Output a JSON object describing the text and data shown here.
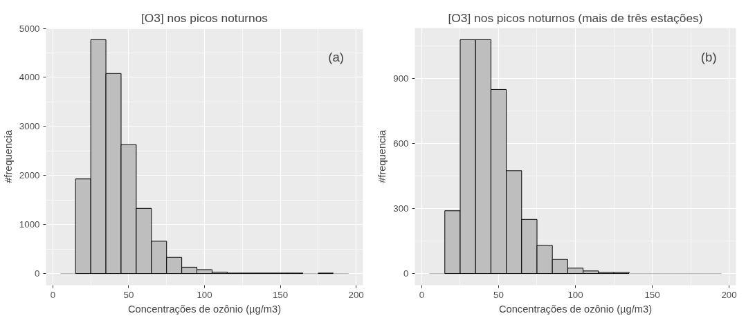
{
  "chart_data": [
    {
      "type": "histogram",
      "title": "[O3] nos picos noturnos",
      "xlabel": "Concentrações de ozônio (µg/m3)",
      "ylabel": "#frequencia",
      "annotations": [
        "(a)"
      ],
      "bins": [
        5,
        15,
        25,
        35,
        45,
        55,
        65,
        75,
        85,
        95,
        105,
        115,
        125,
        135,
        145,
        155,
        165,
        175,
        185,
        195
      ],
      "values": [
        0,
        1930,
        4770,
        4080,
        2630,
        1330,
        660,
        330,
        130,
        80,
        30,
        10,
        10,
        10,
        10,
        10,
        0,
        10,
        0
      ],
      "color": "#bebebe",
      "xlim": [
        -4.5,
        204.5
      ],
      "xticks": [
        0,
        50,
        100,
        150,
        200
      ],
      "ylim": [
        -238,
        5008
      ],
      "yticks": [
        0,
        1000,
        2000,
        3000,
        4000,
        5000
      ],
      "grid": true
    },
    {
      "type": "histogram",
      "title": "[O3] nos picos noturnos (mais de três estações)",
      "xlabel": "Concentrações de ozônio (µg/m3)",
      "ylabel": "#frequencia",
      "annotations": [
        "(b)"
      ],
      "bins": [
        5,
        15,
        25,
        35,
        45,
        55,
        65,
        75,
        85,
        95,
        105,
        115,
        125,
        135,
        145,
        155,
        165,
        175,
        185,
        195
      ],
      "values": [
        0,
        290,
        1080,
        1080,
        850,
        475,
        250,
        130,
        65,
        25,
        12,
        5,
        5,
        0,
        0,
        0,
        0,
        0,
        0
      ],
      "color": "#bebebe",
      "xlim": [
        -4.5,
        204.5
      ],
      "xticks": [
        0,
        50,
        100,
        150,
        200
      ],
      "ylim": [
        -54,
        1134
      ],
      "yticks": [
        0,
        300,
        600,
        900
      ],
      "grid": true
    }
  ]
}
